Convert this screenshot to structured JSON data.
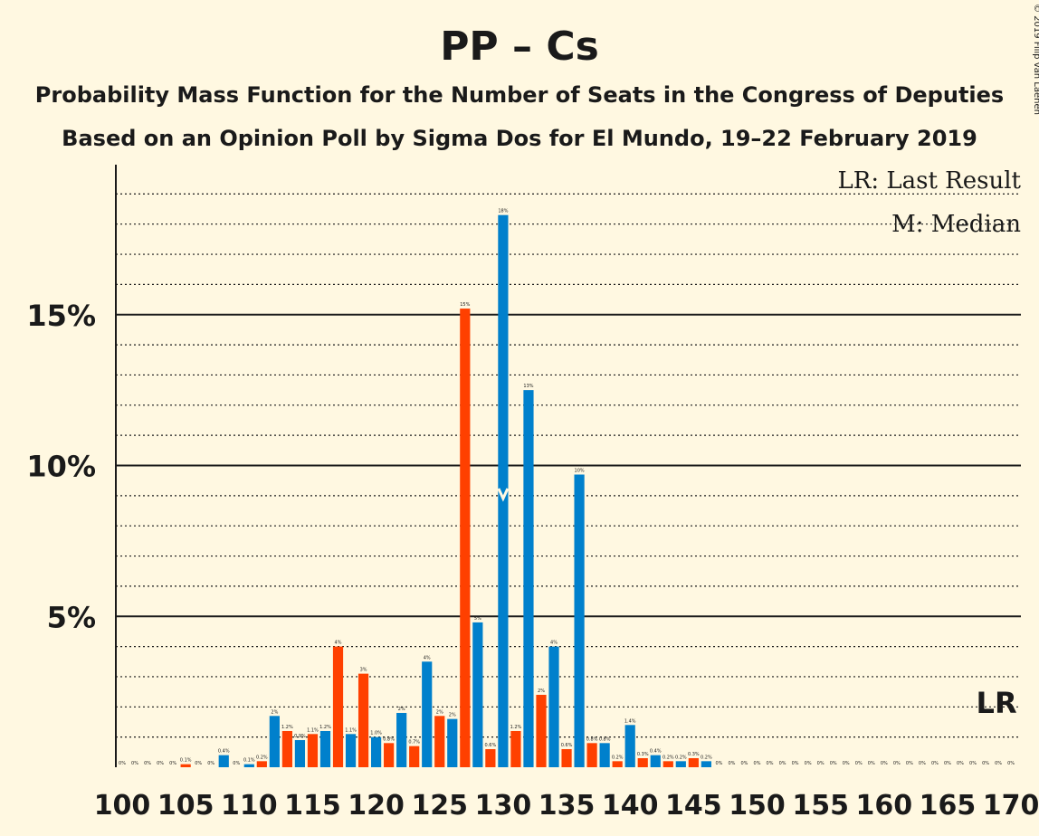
{
  "chart_data": {
    "type": "bar",
    "title": "PP – Cs",
    "subtitle_1": "Probability Mass Function for the Number of Seats in the Congress of Deputies",
    "subtitle_2": "Based on an Opinion Poll by Sigma Dos for El Mundo, 19–22 February 2019",
    "legend_last_result": "LR: Last Result",
    "legend_median": "M: Median",
    "lr_marker": "LR",
    "median_marker": "M",
    "copyright": "© 2019 Filip van Laenen",
    "x_range": [
      100,
      170
    ],
    "x_ticks": [
      "100",
      "105",
      "110",
      "115",
      "120",
      "125",
      "130",
      "135",
      "140",
      "145",
      "150",
      "155",
      "160",
      "165",
      "170"
    ],
    "y_range": [
      0,
      0.19
    ],
    "y_ticks": [
      {
        "value": 0.05,
        "label": "5%"
      },
      {
        "value": 0.1,
        "label": "10%"
      },
      {
        "value": 0.15,
        "label": "15%"
      }
    ],
    "median": 130,
    "last_result": 169,
    "colors": {
      "blue": "#0080CC",
      "orange": "#FF4000",
      "grid": "#1a1a1a",
      "background": "#FFF8E1"
    },
    "bars": [
      {
        "seats": 100,
        "value": 0.0,
        "label": "0%"
      },
      {
        "seats": 101,
        "value": 0.0,
        "label": "0%"
      },
      {
        "seats": 102,
        "value": 0.0,
        "label": "0%"
      },
      {
        "seats": 103,
        "value": 0.0,
        "label": "0%"
      },
      {
        "seats": 104,
        "value": 0.0,
        "label": "0%"
      },
      {
        "seats": 105,
        "value": 0.001,
        "label": "0.1%"
      },
      {
        "seats": 106,
        "value": 0.0,
        "label": "0%"
      },
      {
        "seats": 107,
        "value": 0.0,
        "label": "0%"
      },
      {
        "seats": 108,
        "value": 0.004,
        "label": "0.4%"
      },
      {
        "seats": 109,
        "value": 0.0,
        "label": "0%"
      },
      {
        "seats": 110,
        "value": 0.001,
        "label": "0.1%"
      },
      {
        "seats": 111,
        "value": 0.002,
        "label": "0.2%"
      },
      {
        "seats": 112,
        "value": 0.017,
        "label": "2%"
      },
      {
        "seats": 113,
        "value": 0.012,
        "label": "1.2%"
      },
      {
        "seats": 114,
        "value": 0.009,
        "label": "0.9%"
      },
      {
        "seats": 115,
        "value": 0.011,
        "label": "1.1%"
      },
      {
        "seats": 116,
        "value": 0.012,
        "label": "1.2%"
      },
      {
        "seats": 117,
        "value": 0.04,
        "label": "4%"
      },
      {
        "seats": 118,
        "value": 0.011,
        "label": "1.1%"
      },
      {
        "seats": 119,
        "value": 0.031,
        "label": "3%"
      },
      {
        "seats": 120,
        "value": 0.01,
        "label": "1.0%"
      },
      {
        "seats": 121,
        "value": 0.008,
        "label": "0.8%"
      },
      {
        "seats": 122,
        "value": 0.018,
        "label": "2%"
      },
      {
        "seats": 123,
        "value": 0.007,
        "label": "0.7%"
      },
      {
        "seats": 124,
        "value": 0.035,
        "label": "4%"
      },
      {
        "seats": 125,
        "value": 0.017,
        "label": "2%"
      },
      {
        "seats": 126,
        "value": 0.016,
        "label": "2%"
      },
      {
        "seats": 127,
        "value": 0.152,
        "label": "15%"
      },
      {
        "seats": 128,
        "value": 0.048,
        "label": "5%"
      },
      {
        "seats": 129,
        "value": 0.006,
        "label": "0.6%"
      },
      {
        "seats": 130,
        "value": 0.183,
        "label": "18%"
      },
      {
        "seats": 131,
        "value": 0.012,
        "label": "1.2%"
      },
      {
        "seats": 132,
        "value": 0.125,
        "label": "13%"
      },
      {
        "seats": 133,
        "value": 0.024,
        "label": "2%"
      },
      {
        "seats": 134,
        "value": 0.04,
        "label": "4%"
      },
      {
        "seats": 135,
        "value": 0.006,
        "label": "0.6%"
      },
      {
        "seats": 136,
        "value": 0.097,
        "label": "10%"
      },
      {
        "seats": 137,
        "value": 0.008,
        "label": "0.8%"
      },
      {
        "seats": 138,
        "value": 0.008,
        "label": "0.8%"
      },
      {
        "seats": 139,
        "value": 0.002,
        "label": "0.2%"
      },
      {
        "seats": 140,
        "value": 0.014,
        "label": "1.4%"
      },
      {
        "seats": 141,
        "value": 0.003,
        "label": "0.3%"
      },
      {
        "seats": 142,
        "value": 0.004,
        "label": "0.4%"
      },
      {
        "seats": 143,
        "value": 0.002,
        "label": "0.2%"
      },
      {
        "seats": 144,
        "value": 0.002,
        "label": "0.2%"
      },
      {
        "seats": 145,
        "value": 0.003,
        "label": "0.3%"
      },
      {
        "seats": 146,
        "value": 0.002,
        "label": "0.2%"
      },
      {
        "seats": 147,
        "value": 0.0,
        "label": "0%"
      },
      {
        "seats": 148,
        "value": 0.0,
        "label": "0%"
      },
      {
        "seats": 149,
        "value": 0.0,
        "label": "0%"
      },
      {
        "seats": 150,
        "value": 0.0,
        "label": "0%"
      },
      {
        "seats": 151,
        "value": 0.0,
        "label": "0%"
      },
      {
        "seats": 152,
        "value": 0.0,
        "label": "0%"
      },
      {
        "seats": 153,
        "value": 0.0,
        "label": "0%"
      },
      {
        "seats": 154,
        "value": 0.0,
        "label": "0%"
      },
      {
        "seats": 155,
        "value": 0.0,
        "label": "0%"
      },
      {
        "seats": 156,
        "value": 0.0,
        "label": "0%"
      },
      {
        "seats": 157,
        "value": 0.0,
        "label": "0%"
      },
      {
        "seats": 158,
        "value": 0.0,
        "label": "0%"
      },
      {
        "seats": 159,
        "value": 0.0,
        "label": "0%"
      },
      {
        "seats": 160,
        "value": 0.0,
        "label": "0%"
      },
      {
        "seats": 161,
        "value": 0.0,
        "label": "0%"
      },
      {
        "seats": 162,
        "value": 0.0,
        "label": "0%"
      },
      {
        "seats": 163,
        "value": 0.0,
        "label": "0%"
      },
      {
        "seats": 164,
        "value": 0.0,
        "label": "0%"
      },
      {
        "seats": 165,
        "value": 0.0,
        "label": "0%"
      },
      {
        "seats": 166,
        "value": 0.0,
        "label": "0%"
      },
      {
        "seats": 167,
        "value": 0.0,
        "label": "0%"
      },
      {
        "seats": 168,
        "value": 0.0,
        "label": "0%"
      },
      {
        "seats": 169,
        "value": 0.0,
        "label": "0%"
      },
      {
        "seats": 170,
        "value": 0.0,
        "label": "0%"
      }
    ]
  }
}
